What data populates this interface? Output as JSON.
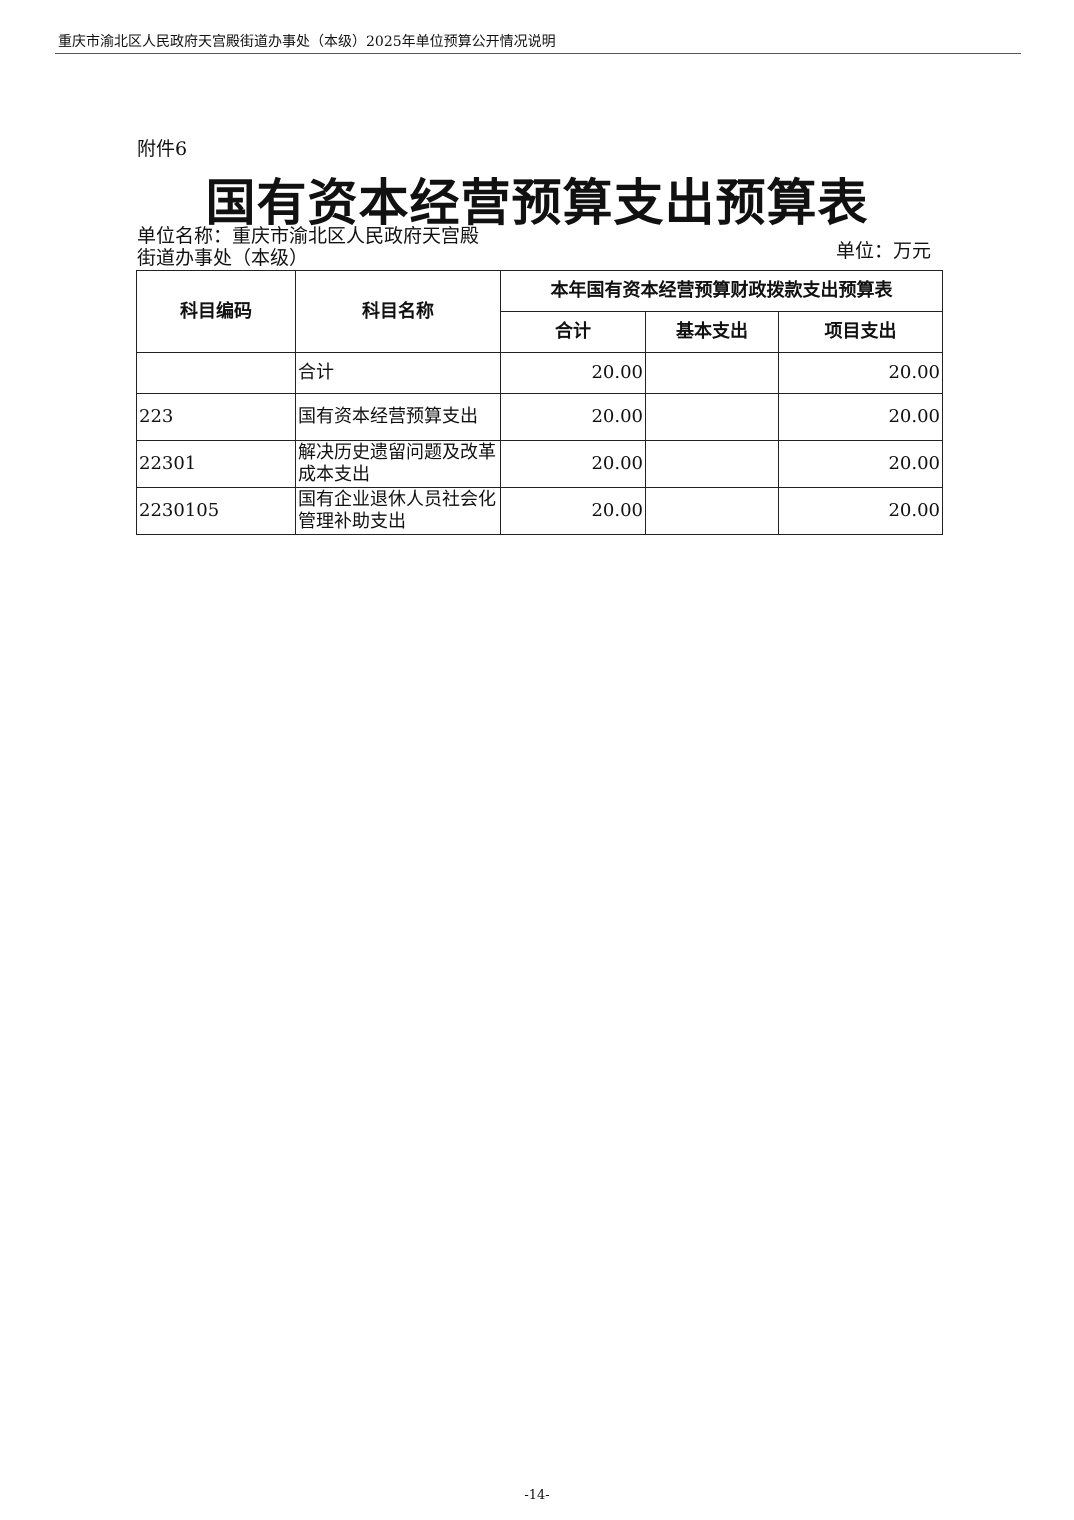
{
  "running_header": "重庆市渝北区人民政府天宫殿街道办事处（本级）2025年单位预算公开情况说明",
  "attachment_label": "附件6",
  "title": "国有资本经营预算支出预算表",
  "unit_name": "单位名称：重庆市渝北区人民政府天宫殿街道办事处（本级）",
  "unit": "单位：万元",
  "table": {
    "headers": {
      "code": "科目编码",
      "name": "科目名称",
      "group": "本年国有资本经营预算财政拨款支出预算表",
      "total": "合计",
      "basic": "基本支出",
      "project": "项目支出"
    },
    "rows": [
      {
        "code": "",
        "name": "合计",
        "total": "20.00",
        "basic": "",
        "project": "20.00"
      },
      {
        "code": "223",
        "name": "国有资本经营预算支出",
        "total": "20.00",
        "basic": "",
        "project": "20.00"
      },
      {
        "code": "22301",
        "name": "解决历史遗留问题及改革成本支出",
        "total": "20.00",
        "basic": "",
        "project": "20.00"
      },
      {
        "code": "2230105",
        "name": "国有企业退休人员社会化管理补助支出",
        "total": "20.00",
        "basic": "",
        "project": "20.00"
      }
    ]
  },
  "page_number": "-14-"
}
